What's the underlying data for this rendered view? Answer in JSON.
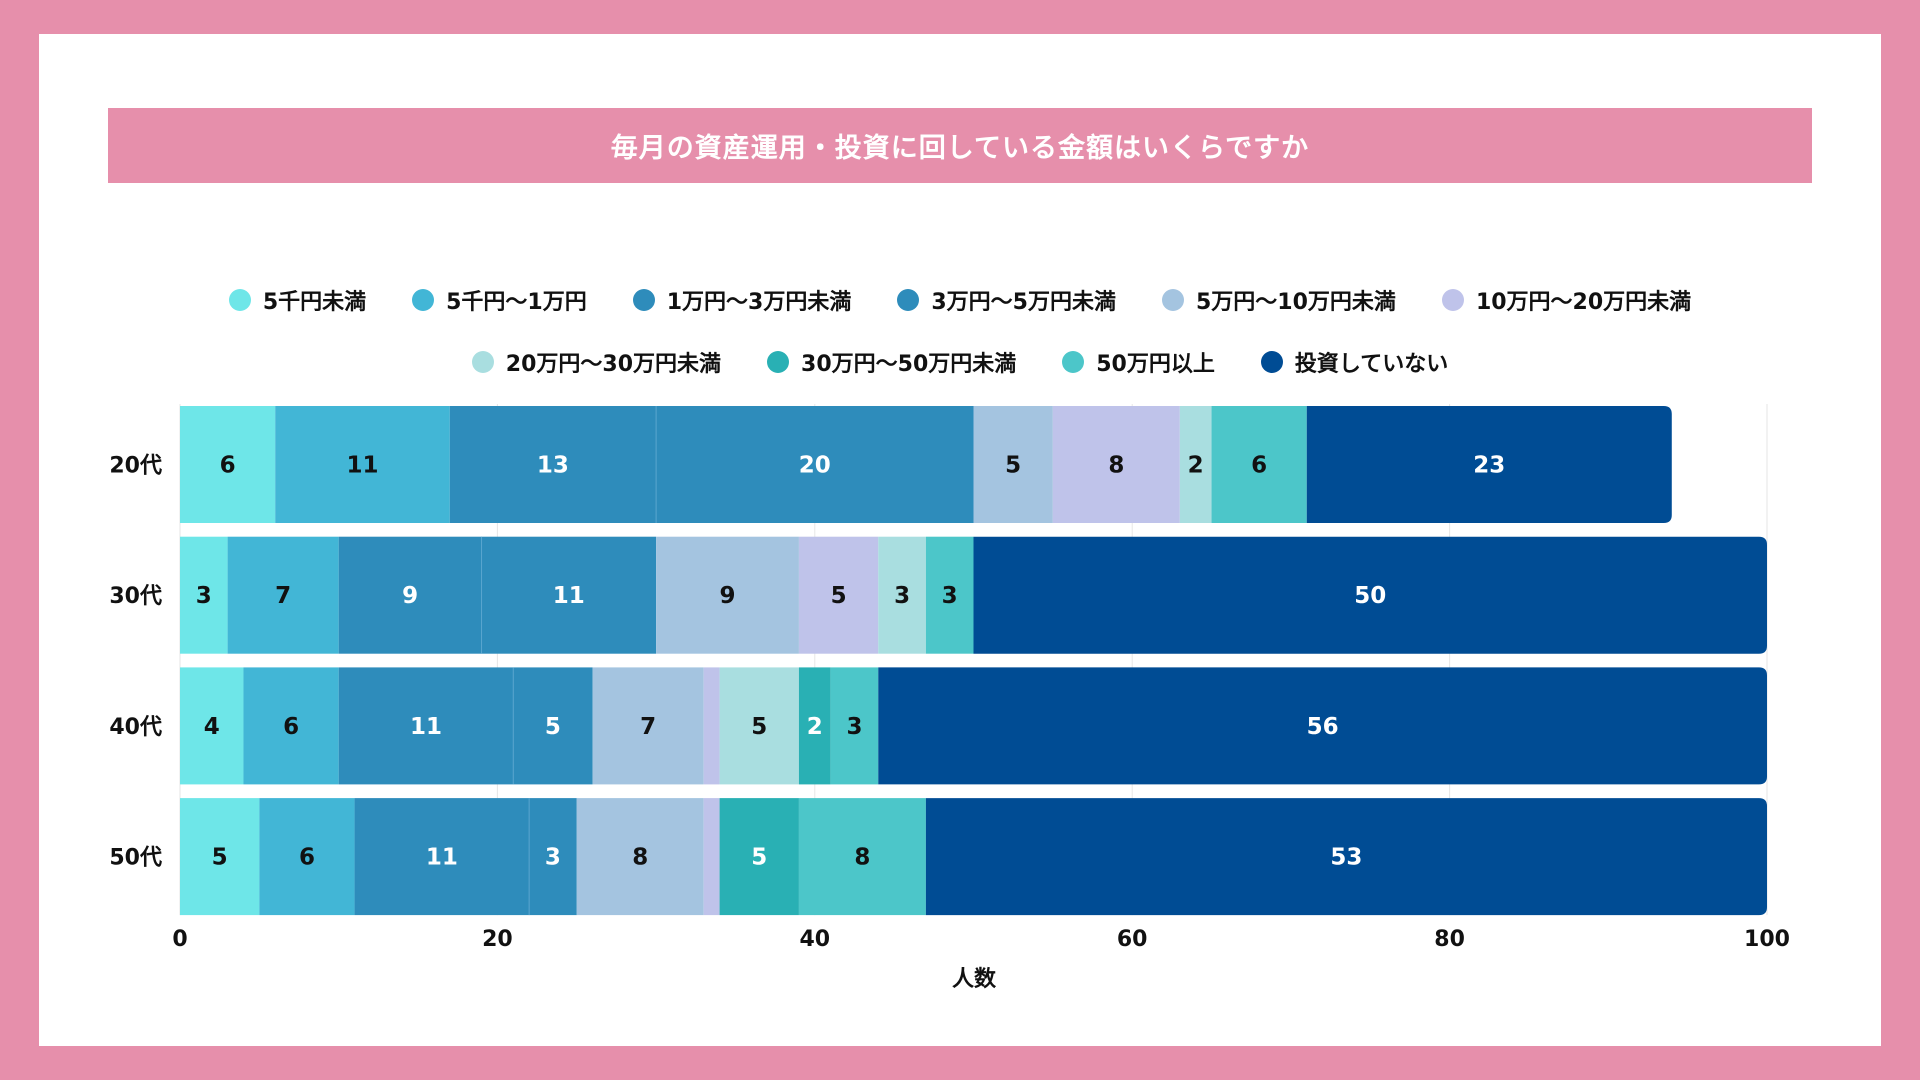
{
  "frame_color": "#e68fab",
  "chart_data": {
    "type": "bar",
    "orientation": "horizontal",
    "stacked": true,
    "title": "毎月の資産運用・投資に回している金額はいくらですか",
    "xlabel": "人数",
    "ylabel": "",
    "xlim": [
      0,
      100
    ],
    "xticks": [
      "0",
      "20",
      "40",
      "60",
      "80",
      "100"
    ],
    "grid": true,
    "legend_placement": "top",
    "categories": [
      "20代",
      "30代",
      "40代",
      "50代"
    ],
    "series": [
      {
        "name": "5千円未満",
        "color": "#6ee6e8",
        "label_color": "#111111",
        "values": [
          6,
          3,
          4,
          5
        ]
      },
      {
        "name": "5千円〜1万円",
        "color": "#42b6d6",
        "label_color": "#111111",
        "values": [
          11,
          7,
          6,
          6
        ]
      },
      {
        "name": "1万円〜3万円未満",
        "color": "#2e8cbb",
        "label_color": "#ffffff",
        "values": [
          13,
          9,
          11,
          11
        ]
      },
      {
        "name": "3万円〜5万円未満",
        "color": "#2e8cbb",
        "label_color": "#ffffff",
        "values": [
          20,
          11,
          5,
          3
        ]
      },
      {
        "name": "5万円〜10万円未満",
        "color": "#a4c4e0",
        "label_color": "#111111",
        "values": [
          5,
          9,
          7,
          8
        ]
      },
      {
        "name": "10万円〜20万円未満",
        "color": "#bfc3ea",
        "label_color": "#111111",
        "values": [
          8,
          5,
          1,
          1
        ]
      },
      {
        "name": "20万円〜30万円未満",
        "color": "#a9dee0",
        "label_color": "#111111",
        "values": [
          2,
          3,
          5,
          0
        ]
      },
      {
        "name": "30万円〜50万円未満",
        "color": "#29b0b4",
        "label_color": "#ffffff",
        "values": [
          0,
          0,
          2,
          5
        ]
      },
      {
        "name": "50万円以上",
        "color": "#4cc6c9",
        "label_color": "#111111",
        "values": [
          6,
          3,
          3,
          8
        ]
      },
      {
        "name": "投資していない",
        "color": "#004c94",
        "label_color": "#ffffff",
        "values": [
          23,
          50,
          56,
          53
        ]
      }
    ],
    "min_labeled_value": 2
  }
}
